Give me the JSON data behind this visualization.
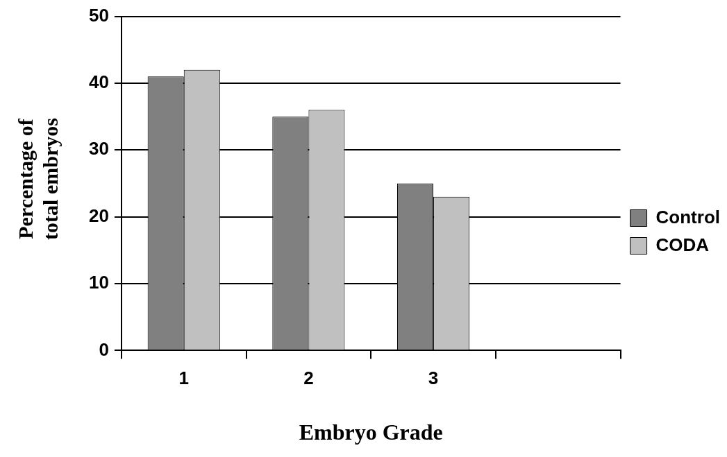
{
  "chart_data": {
    "type": "bar",
    "xlabel": "Embryo Grade",
    "ylabel": "Percentage of total embryos",
    "categories": [
      "1",
      "2",
      "3",
      null
    ],
    "series": [
      {
        "name": "Control",
        "color": "#808080",
        "values": [
          41,
          35,
          25,
          null
        ]
      },
      {
        "name": "CODA",
        "color": "#c0c0c0",
        "values": [
          42,
          36,
          23,
          null
        ]
      }
    ],
    "ylim": [
      0,
      50
    ],
    "yticks": [
      0,
      10,
      20,
      30,
      40,
      50
    ],
    "grid": "y",
    "legend": "right"
  }
}
